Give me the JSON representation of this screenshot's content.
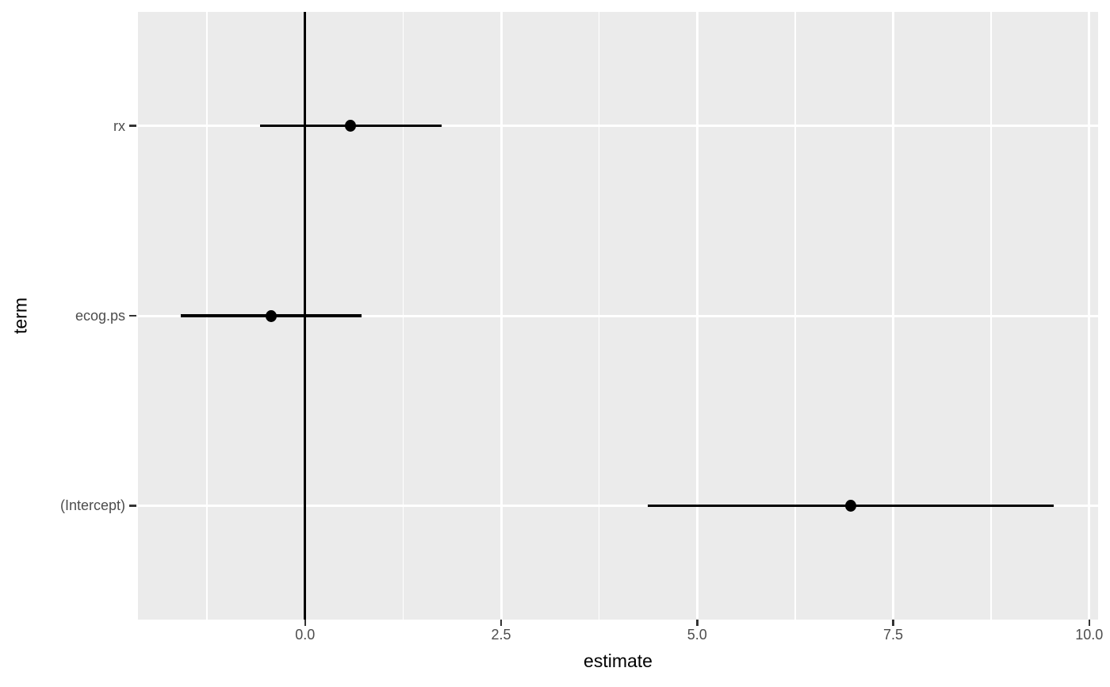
{
  "chart_data": {
    "type": "scatter",
    "subtype": "pointrange-coefficient-plot",
    "title": "",
    "xlabel": "estimate",
    "ylabel": "term",
    "legend": "none",
    "grid": "on",
    "panel_theme": "ggplot2-grey",
    "x_axis": {
      "tick_labels": [
        "0.0",
        "2.5",
        "5.0",
        "7.5",
        "10.0"
      ],
      "tick_values": [
        0,
        2.5,
        5,
        7.5,
        10
      ],
      "minor_gridline_values": [
        -1.25,
        1.25,
        3.75,
        6.25,
        8.75
      ],
      "xlim": [
        -2.131,
        10.113
      ]
    },
    "y_axis": {
      "tick_labels": [
        "rx",
        "ecog.ps",
        "(Intercept)"
      ],
      "tick_positions": [
        3,
        2,
        1
      ],
      "ylim": [
        0.4,
        3.6
      ]
    },
    "reference_line": {
      "orientation": "vertical",
      "x": 0
    },
    "points": [
      {
        "term": "rx",
        "estimate": 0.58,
        "conf_low": -0.57,
        "conf_high": 1.74,
        "y": 3
      },
      {
        "term": "ecog.ps",
        "estimate": -0.43,
        "conf_low": -1.58,
        "conf_high": 0.72,
        "y": 2
      },
      {
        "term": "(Intercept)",
        "estimate": 6.96,
        "conf_low": 4.37,
        "conf_high": 9.55,
        "y": 1
      }
    ],
    "colors": {
      "panel_background": "#EBEBEB",
      "gridlines": "#FFFFFF",
      "data": "#000000",
      "tick_labels": "#4D4D4D",
      "tick_marks": "#333333",
      "axis_titles": "#000000",
      "plot_background": "#FFFFFF"
    }
  }
}
